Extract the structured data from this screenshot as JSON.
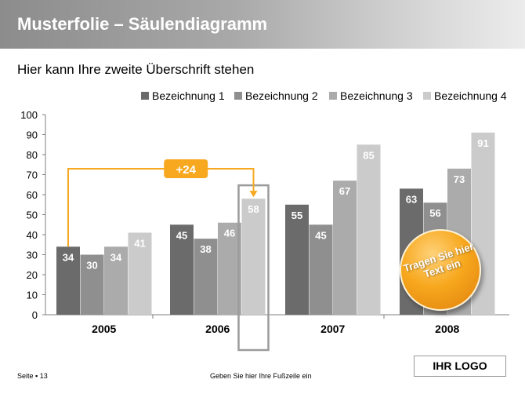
{
  "slide": {
    "title": "Musterfolie – Säulendiagramm",
    "subtitle": "Hier kann Ihre zweite Überschrift stehen",
    "page_label": "Seite ▪ 13",
    "footer": "Geben Sie hier Ihre Fußzeile ein",
    "logo": "IHR LOGO",
    "badge_text": "Tragen Sie hier Text ein"
  },
  "colors": {
    "series": [
      "#6b6b6b",
      "#8f8f8f",
      "#ababab",
      "#cbcbcb"
    ],
    "accent": "#f7a81e"
  },
  "chart_data": {
    "type": "bar",
    "categories": [
      "2005",
      "2006",
      "2007",
      "2008"
    ],
    "series": [
      {
        "name": "Bezeichnung 1",
        "values": [
          34,
          45,
          55,
          63
        ]
      },
      {
        "name": "Bezeichnung 2",
        "values": [
          30,
          38,
          45,
          56
        ]
      },
      {
        "name": "Bezeichnung 3",
        "values": [
          34,
          46,
          67,
          73
        ]
      },
      {
        "name": "Bezeichnung 4",
        "values": [
          41,
          58,
          85,
          91
        ]
      }
    ],
    "ylim": [
      0,
      100
    ],
    "yticks": [
      0,
      10,
      20,
      30,
      40,
      50,
      60,
      70,
      80,
      90,
      100
    ],
    "grid": false,
    "legend": "top-right",
    "annotation": {
      "label": "+24",
      "from_series": 0,
      "from_category": 0,
      "to_series": 3,
      "to_category": 1
    },
    "highlight": {
      "series": 3,
      "category": 1
    }
  }
}
